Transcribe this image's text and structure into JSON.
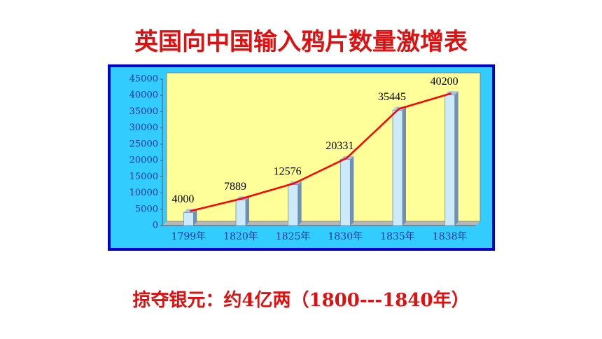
{
  "chart_data": {
    "type": "bar",
    "title": "英国向中国输入鸦片数量激增表",
    "annotation": "掠夺银元：约4亿两（1800---1840年）",
    "categories": [
      "1799年",
      "1820年",
      "1825年",
      "1830年",
      "1835年",
      "1838年"
    ],
    "values": [
      4000,
      7889,
      12576,
      20331,
      35445,
      40200
    ],
    "color": "#cdeaf8",
    "line_color": "#ff0000",
    "ylim": [
      0,
      45000
    ],
    "yticks": [
      0,
      5000,
      10000,
      15000,
      20000,
      25000,
      30000,
      35000,
      40000,
      45000
    ],
    "grid": false
  }
}
